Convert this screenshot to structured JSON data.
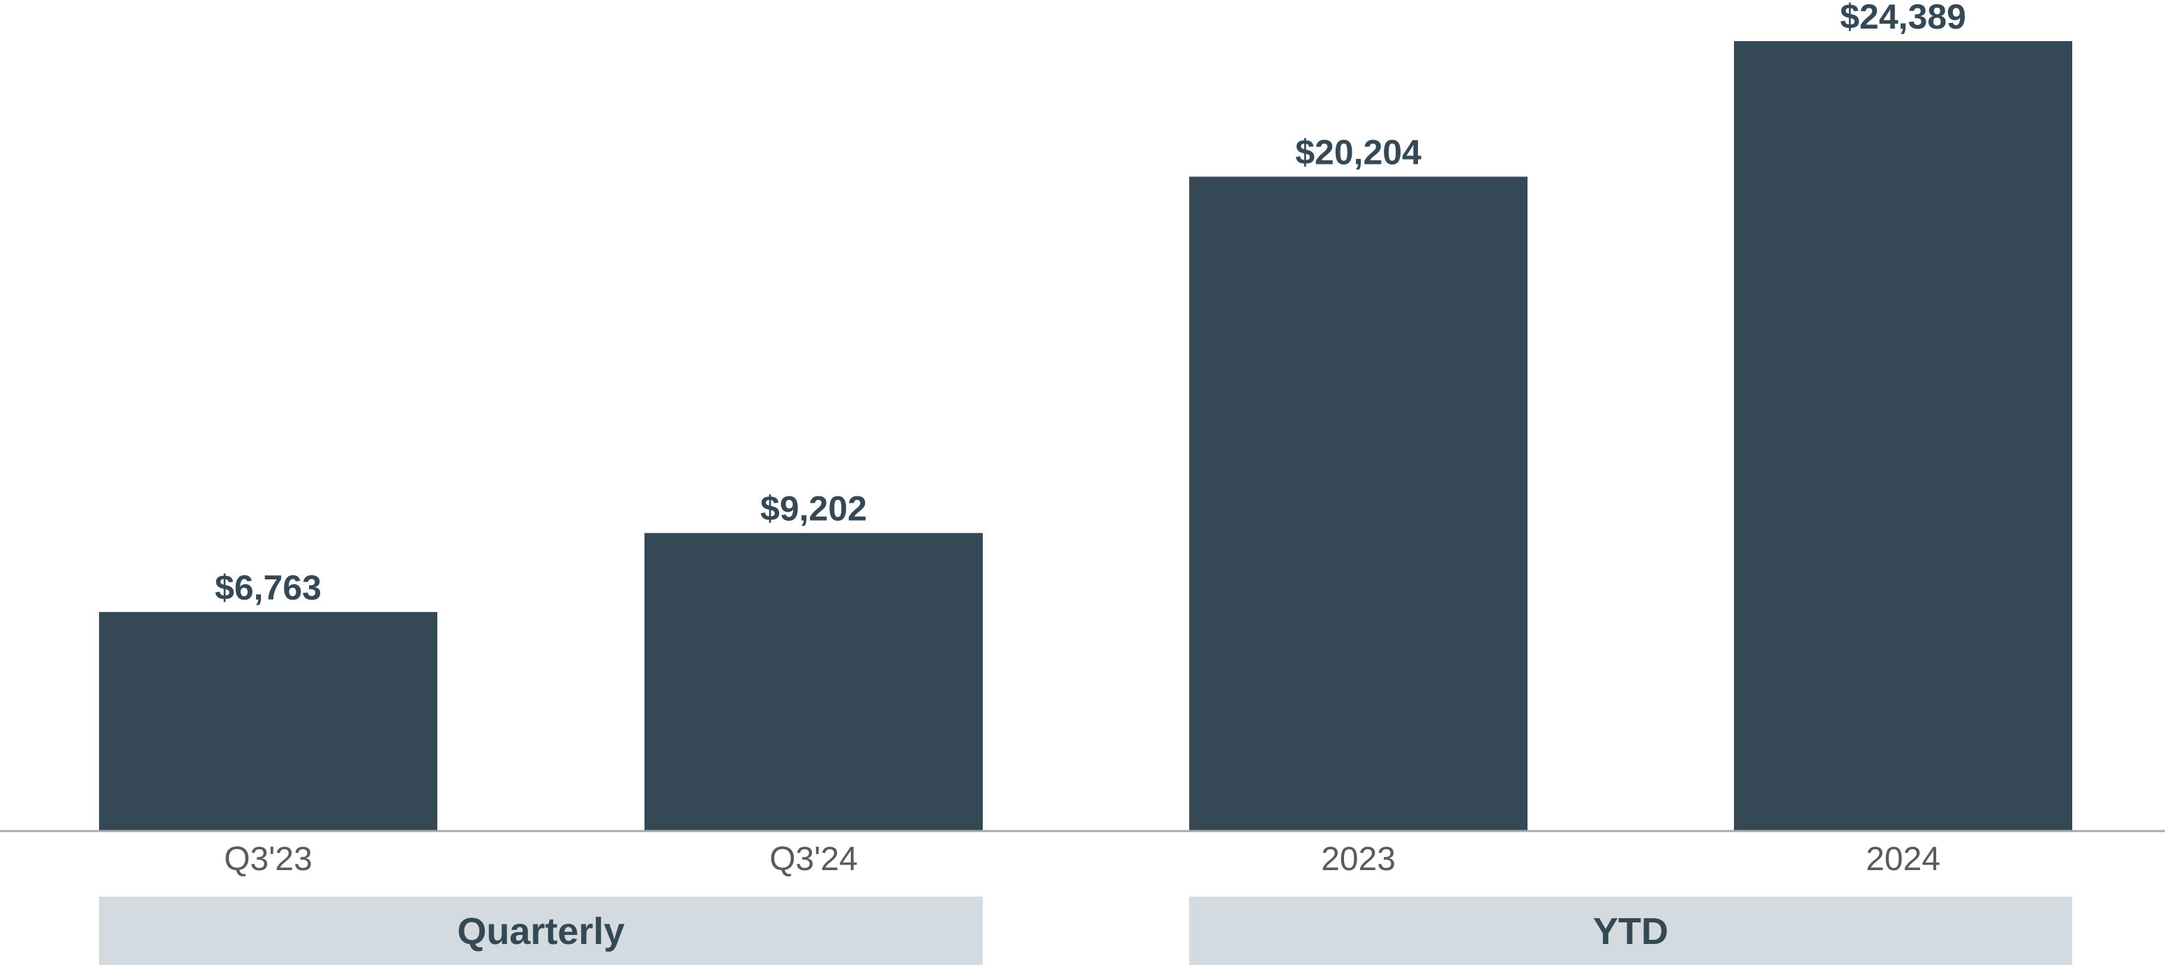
{
  "chart_data": {
    "type": "bar",
    "categories": [
      "Q3'23",
      "Q3'24",
      "2023",
      "2024"
    ],
    "values": [
      6763,
      9202,
      20204,
      24389
    ],
    "value_labels": [
      "$6,763",
      "$9,202",
      "$20,204",
      "$24,389"
    ],
    "ylim": [
      0,
      24389
    ],
    "grid": false,
    "groups": [
      {
        "label": "Quarterly",
        "categories": [
          "Q3'23",
          "Q3'24"
        ]
      },
      {
        "label": "YTD",
        "categories": [
          "2023",
          "2024"
        ]
      }
    ],
    "colors": {
      "bar": "#354855",
      "value_label": "#354855",
      "tick_label": "#5a5a5a",
      "group_box": "#d3dbe1",
      "group_label": "#354855",
      "baseline": "#a8a8a8"
    }
  }
}
